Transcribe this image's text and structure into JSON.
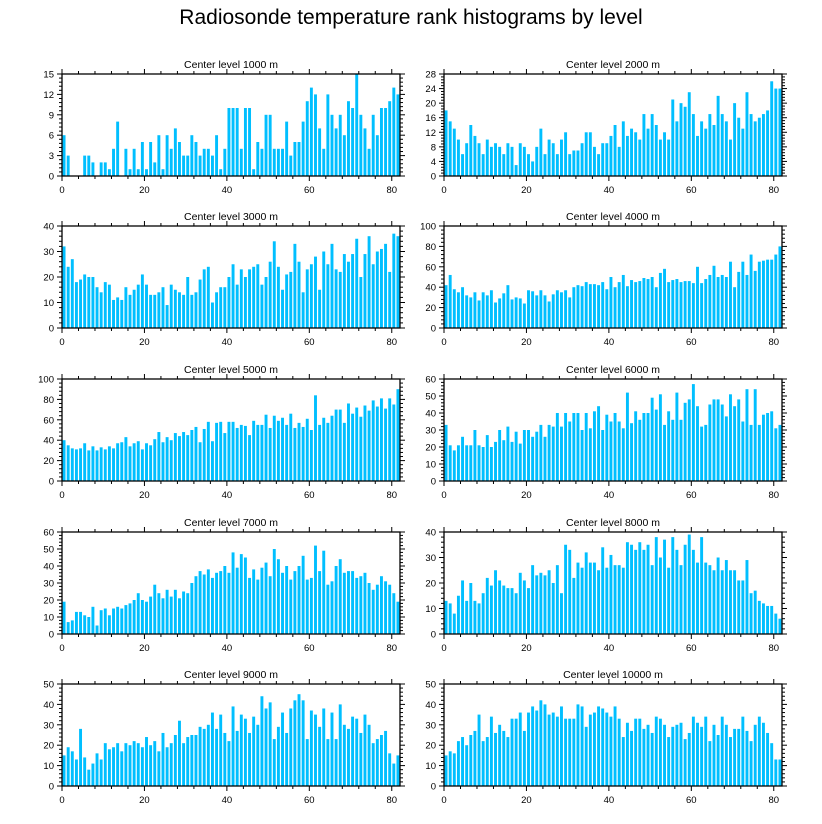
{
  "title": "Radiosonde temperature rank histograms by level",
  "bar_color": "#00bfff",
  "chart_data": [
    {
      "type": "bar",
      "title": "Center level 1000 m",
      "xlim": [
        0,
        82
      ],
      "ylim": [
        0,
        15
      ],
      "yticks": [
        0,
        3,
        6,
        9,
        12,
        15
      ],
      "xticks": [
        0,
        20,
        40,
        60,
        80
      ],
      "values": [
        6,
        3,
        0,
        0,
        0,
        3,
        3,
        2,
        0,
        2,
        2,
        1,
        4,
        8,
        0,
        4,
        1,
        4,
        1,
        5,
        1,
        5,
        2,
        6,
        1,
        6,
        4,
        7,
        5,
        3,
        3,
        6,
        5,
        3,
        4,
        4,
        3,
        6,
        1,
        4,
        10,
        10,
        10,
        4,
        10,
        10,
        1,
        5,
        4,
        9,
        9,
        4,
        4,
        4,
        8,
        3,
        5,
        5,
        8,
        11,
        13,
        12,
        7,
        4,
        12,
        9,
        7,
        9,
        6,
        11,
        10,
        15,
        9,
        7,
        4,
        9,
        6,
        10,
        10,
        11,
        13,
        12
      ]
    },
    {
      "type": "bar",
      "title": "Center level 2000 m",
      "xlim": [
        0,
        82
      ],
      "ylim": [
        0,
        28
      ],
      "yticks": [
        0,
        4,
        8,
        12,
        16,
        20,
        24,
        28
      ],
      "xticks": [
        0,
        20,
        40,
        60,
        80
      ],
      "values": [
        18,
        15,
        13,
        10,
        6,
        9,
        14,
        11,
        9,
        6,
        10,
        8,
        9,
        8,
        6,
        9,
        8,
        3,
        9,
        8,
        6,
        4,
        8,
        13,
        6,
        10,
        9,
        6,
        10,
        12,
        6,
        7,
        7,
        9,
        12,
        12,
        8,
        6,
        9,
        9,
        11,
        14,
        8,
        15,
        11,
        13,
        12,
        10,
        17,
        13,
        17,
        14,
        10,
        12,
        10,
        21,
        15,
        20,
        19,
        23,
        17,
        11,
        15,
        13,
        17,
        14,
        22,
        17,
        15,
        10,
        20,
        16,
        13,
        23,
        17,
        15,
        16,
        17,
        18,
        26,
        24,
        24
      ]
    },
    {
      "type": "bar",
      "title": "Center level 3000 m",
      "xlim": [
        0,
        82
      ],
      "ylim": [
        0,
        40
      ],
      "yticks": [
        0,
        10,
        20,
        30,
        40
      ],
      "xticks": [
        0,
        20,
        40,
        60,
        80
      ],
      "values": [
        32,
        24,
        27,
        18,
        19,
        21,
        20,
        20,
        16,
        14,
        18,
        17,
        11,
        12,
        11,
        16,
        13,
        15,
        17,
        21,
        17,
        13,
        13,
        14,
        16,
        9,
        17,
        15,
        14,
        13,
        20,
        13,
        14,
        19,
        23,
        24,
        10,
        14,
        16,
        16,
        20,
        25,
        17,
        23,
        20,
        23,
        24,
        25,
        17,
        20,
        26,
        34,
        24,
        15,
        21,
        22,
        33,
        26,
        14,
        23,
        25,
        28,
        15,
        30,
        25,
        33,
        23,
        22,
        29,
        26,
        29,
        35,
        20,
        29,
        36,
        25,
        30,
        31,
        33,
        22,
        37,
        36
      ]
    },
    {
      "type": "bar",
      "title": "Center level 4000 m",
      "xlim": [
        0,
        82
      ],
      "ylim": [
        0,
        100
      ],
      "yticks": [
        0,
        20,
        40,
        60,
        80,
        100
      ],
      "xticks": [
        0,
        20,
        40,
        60,
        80
      ],
      "values": [
        42,
        52,
        38,
        35,
        40,
        32,
        30,
        35,
        27,
        35,
        32,
        37,
        25,
        29,
        34,
        42,
        28,
        30,
        29,
        24,
        37,
        36,
        32,
        37,
        32,
        26,
        33,
        37,
        35,
        37,
        30,
        40,
        42,
        41,
        45,
        43,
        43,
        42,
        45,
        38,
        50,
        40,
        45,
        52,
        41,
        47,
        45,
        46,
        49,
        48,
        50,
        40,
        54,
        58,
        45,
        47,
        48,
        45,
        46,
        46,
        44,
        60,
        44,
        48,
        52,
        61,
        50,
        52,
        50,
        65,
        40,
        55,
        65,
        52,
        72,
        56,
        65,
        66,
        67,
        67,
        72,
        80
      ]
    },
    {
      "type": "bar",
      "title": "Center level 5000 m",
      "xlim": [
        0,
        82
      ],
      "ylim": [
        0,
        100
      ],
      "yticks": [
        0,
        20,
        40,
        60,
        80,
        100
      ],
      "xticks": [
        0,
        20,
        40,
        60,
        80
      ],
      "values": [
        40,
        35,
        32,
        31,
        32,
        37,
        30,
        34,
        30,
        33,
        31,
        34,
        32,
        37,
        38,
        43,
        34,
        37,
        39,
        31,
        37,
        35,
        41,
        48,
        38,
        43,
        40,
        47,
        44,
        48,
        45,
        50,
        53,
        38,
        51,
        58,
        39,
        57,
        58,
        47,
        58,
        58,
        52,
        55,
        54,
        45,
        59,
        55,
        55,
        65,
        52,
        64,
        59,
        62,
        55,
        66,
        52,
        57,
        53,
        61,
        50,
        84,
        55,
        62,
        57,
        64,
        70,
        70,
        57,
        76,
        66,
        72,
        63,
        74,
        69,
        79,
        73,
        81,
        71,
        81,
        75,
        90
      ]
    },
    {
      "type": "bar",
      "title": "Center level 6000 m",
      "xlim": [
        0,
        82
      ],
      "ylim": [
        0,
        60
      ],
      "yticks": [
        0,
        10,
        20,
        30,
        40,
        50,
        60
      ],
      "xticks": [
        0,
        20,
        40,
        60,
        80
      ],
      "values": [
        33,
        21,
        18,
        21,
        26,
        21,
        21,
        30,
        21,
        20,
        27,
        20,
        23,
        30,
        24,
        32,
        23,
        29,
        22,
        30,
        30,
        26,
        29,
        33,
        26,
        33,
        32,
        40,
        32,
        40,
        35,
        40,
        40,
        30,
        40,
        31,
        41,
        44,
        30,
        39,
        35,
        40,
        35,
        31,
        52,
        34,
        41,
        36,
        40,
        40,
        49,
        42,
        51,
        33,
        41,
        36,
        52,
        36,
        46,
        48,
        57,
        44,
        32,
        33,
        45,
        48,
        48,
        45,
        38,
        51,
        44,
        48,
        35,
        54,
        33,
        54,
        33,
        39,
        40,
        41,
        31,
        33
      ]
    },
    {
      "type": "bar",
      "title": "Center level 7000 m",
      "xlim": [
        0,
        82
      ],
      "ylim": [
        0,
        60
      ],
      "yticks": [
        0,
        10,
        20,
        30,
        40,
        50,
        60
      ],
      "xticks": [
        0,
        20,
        40,
        60,
        80
      ],
      "values": [
        19,
        7,
        8,
        13,
        13,
        11,
        10,
        16,
        5,
        14,
        15,
        11,
        15,
        16,
        15,
        17,
        18,
        20,
        24,
        20,
        19,
        22,
        29,
        24,
        21,
        26,
        22,
        26,
        21,
        25,
        24,
        30,
        34,
        37,
        35,
        38,
        33,
        36,
        37,
        40,
        36,
        48,
        39,
        47,
        45,
        33,
        38,
        32,
        39,
        42,
        34,
        50,
        44,
        36,
        40,
        32,
        37,
        40,
        46,
        32,
        33,
        52,
        37,
        49,
        29,
        31,
        40,
        44,
        36,
        37,
        37,
        33,
        34,
        36,
        30,
        26,
        29,
        34,
        31,
        29,
        24,
        19
      ]
    },
    {
      "type": "bar",
      "title": "Center level 8000 m",
      "xlim": [
        0,
        82
      ],
      "ylim": [
        0,
        40
      ],
      "yticks": [
        0,
        10,
        20,
        30,
        40
      ],
      "xticks": [
        0,
        20,
        40,
        60,
        80
      ],
      "values": [
        13,
        12,
        8,
        15,
        21,
        13,
        20,
        13,
        12,
        16,
        22,
        19,
        25,
        21,
        19,
        18,
        18,
        16,
        24,
        21,
        18,
        27,
        23,
        24,
        23,
        25,
        20,
        27,
        16,
        35,
        33,
        22,
        28,
        26,
        32,
        28,
        28,
        25,
        34,
        26,
        31,
        27,
        27,
        26,
        36,
        35,
        33,
        36,
        33,
        35,
        27,
        38,
        30,
        37,
        26,
        38,
        33,
        27,
        35,
        39,
        33,
        28,
        38,
        28,
        27,
        25,
        30,
        25,
        29,
        25,
        25,
        21,
        21,
        29,
        16,
        17,
        13,
        12,
        11,
        11,
        8,
        6
      ]
    },
    {
      "type": "bar",
      "title": "Center level 9000 m",
      "xlim": [
        0,
        82
      ],
      "ylim": [
        0,
        50
      ],
      "yticks": [
        0,
        10,
        20,
        30,
        40,
        50
      ],
      "xticks": [
        0,
        20,
        40,
        60,
        80
      ],
      "values": [
        15,
        19,
        17,
        13,
        28,
        14,
        8,
        11,
        16,
        13,
        21,
        18,
        19,
        21,
        17,
        21,
        20,
        22,
        21,
        19,
        24,
        20,
        22,
        17,
        26,
        19,
        21,
        25,
        32,
        21,
        24,
        25,
        25,
        29,
        28,
        30,
        36,
        28,
        35,
        26,
        22,
        39,
        27,
        35,
        33,
        26,
        34,
        30,
        44,
        38,
        41,
        23,
        29,
        36,
        26,
        38,
        42,
        45,
        42,
        23,
        37,
        35,
        29,
        38,
        23,
        36,
        23,
        40,
        30,
        28,
        34,
        33,
        26,
        35,
        30,
        21,
        23,
        25,
        27,
        16,
        11,
        15
      ]
    },
    {
      "type": "bar",
      "title": "Center level 10000 m",
      "xlim": [
        0,
        82
      ],
      "ylim": [
        0,
        50
      ],
      "yticks": [
        0,
        10,
        20,
        30,
        40,
        50
      ],
      "xticks": [
        0,
        20,
        40,
        60,
        80
      ],
      "values": [
        15,
        17,
        16,
        22,
        24,
        20,
        25,
        27,
        35,
        22,
        24,
        34,
        26,
        30,
        27,
        24,
        33,
        33,
        36,
        27,
        36,
        39,
        37,
        42,
        40,
        35,
        36,
        34,
        39,
        33,
        33,
        33,
        40,
        39,
        29,
        35,
        36,
        39,
        38,
        36,
        34,
        39,
        33,
        24,
        31,
        27,
        33,
        33,
        28,
        30,
        26,
        34,
        33,
        30,
        24,
        29,
        30,
        31,
        23,
        26,
        34,
        31,
        29,
        34,
        22,
        30,
        25,
        34,
        30,
        24,
        28,
        28,
        34,
        27,
        22,
        30,
        34,
        31,
        26,
        21,
        13,
        13
      ]
    }
  ]
}
